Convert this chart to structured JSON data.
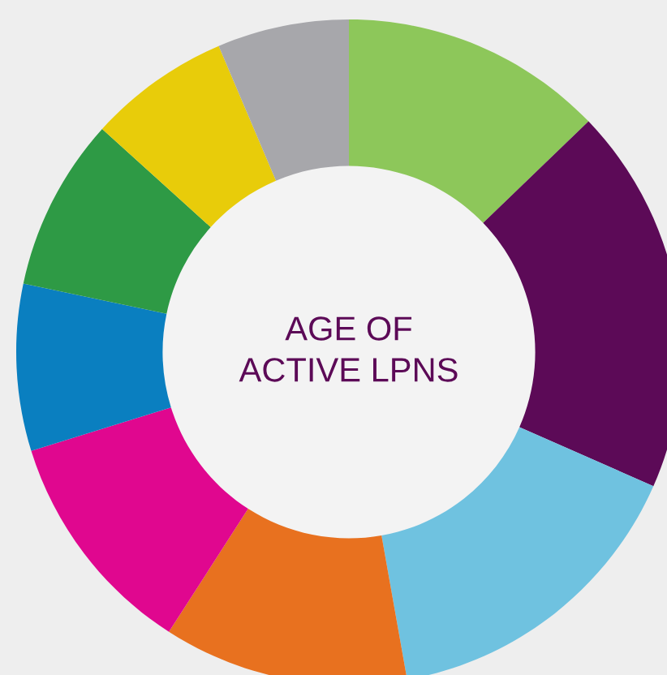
{
  "chart_data": {
    "type": "donut",
    "title": "AGE OF\nACTIVE LPNS",
    "categories": [
      null,
      null,
      null,
      null,
      null,
      null,
      null,
      null,
      null
    ],
    "values": [
      12.8,
      18.8,
      15.6,
      11.9,
      11.1,
      8.1,
      8.4,
      6.9,
      6.4
    ],
    "colors": [
      "#8dc75a",
      "#5c0a57",
      "#6fc2e0",
      "#e8711f",
      "#e0078f",
      "#0a7fc0",
      "#2e9a45",
      "#e8cc0a",
      "#a7a7ab"
    ]
  }
}
